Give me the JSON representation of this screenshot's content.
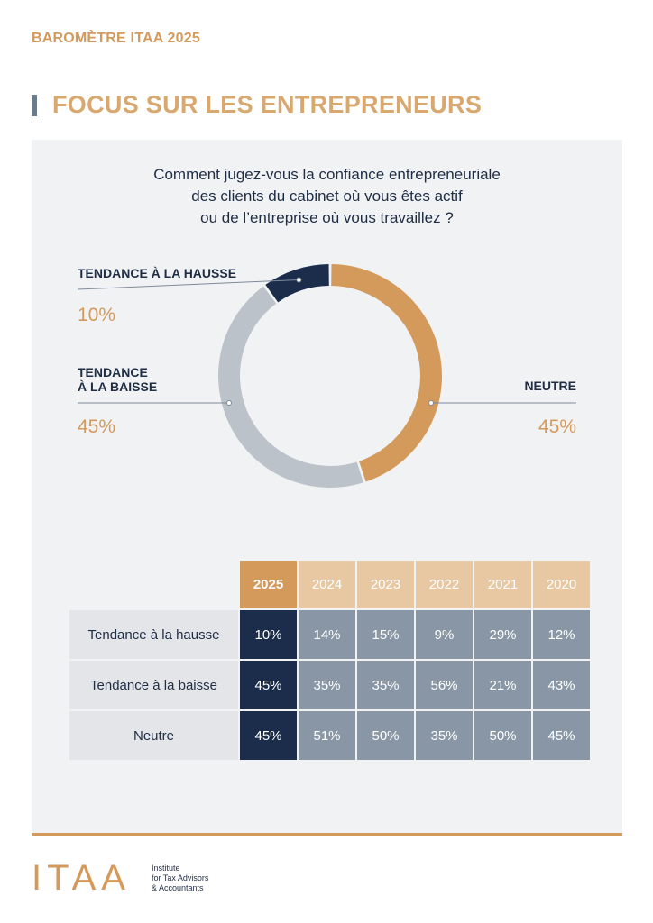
{
  "header": {
    "eyebrow": "BAROMÈTRE ITAA 2025",
    "title": "FOCUS SUR LES ENTREPRENEURS"
  },
  "question": {
    "line1": "Comment jugez-vous la confiance entrepreneuriale",
    "line2": "des clients du cabinet où vous êtes actif",
    "line3": "ou de l’entreprise où vous travaillez ?"
  },
  "labels": {
    "hausse_line1": "TENDANCE À LA HAUSSE",
    "hausse_pct": "10%",
    "baisse_line1": "TENDANCE",
    "baisse_line2": "À LA BAISSE",
    "baisse_pct": "45%",
    "neutre_line1": "NEUTRE",
    "neutre_pct": "45%"
  },
  "colors": {
    "hausse": "#1b2d4b",
    "neutre": "#d49a5b",
    "baisse": "#bcc2ca"
  },
  "chart_data": [
    {
      "type": "pie",
      "series": [
        {
          "name": "Tendance à la hausse",
          "value": 10
        },
        {
          "name": "Neutre",
          "value": 45
        },
        {
          "name": "Tendance à la baisse",
          "value": 45
        }
      ]
    },
    {
      "type": "table",
      "columns": [
        "2025",
        "2024",
        "2023",
        "2022",
        "2021",
        "2020"
      ],
      "rows": [
        {
          "label": "Tendance à la hausse",
          "values": [
            "10%",
            "14%",
            "15%",
            "9%",
            "29%",
            "12%"
          ]
        },
        {
          "label": "Tendance à la baisse",
          "values": [
            "45%",
            "35%",
            "35%",
            "56%",
            "21%",
            "43%"
          ]
        },
        {
          "label": "Neutre",
          "values": [
            "45%",
            "51%",
            "50%",
            "35%",
            "50%",
            "45%"
          ]
        }
      ]
    }
  ],
  "footer": {
    "logo": "ITAA",
    "line1": "Institute",
    "line2": "for Tax Advisors",
    "line3": "& Accountants"
  }
}
